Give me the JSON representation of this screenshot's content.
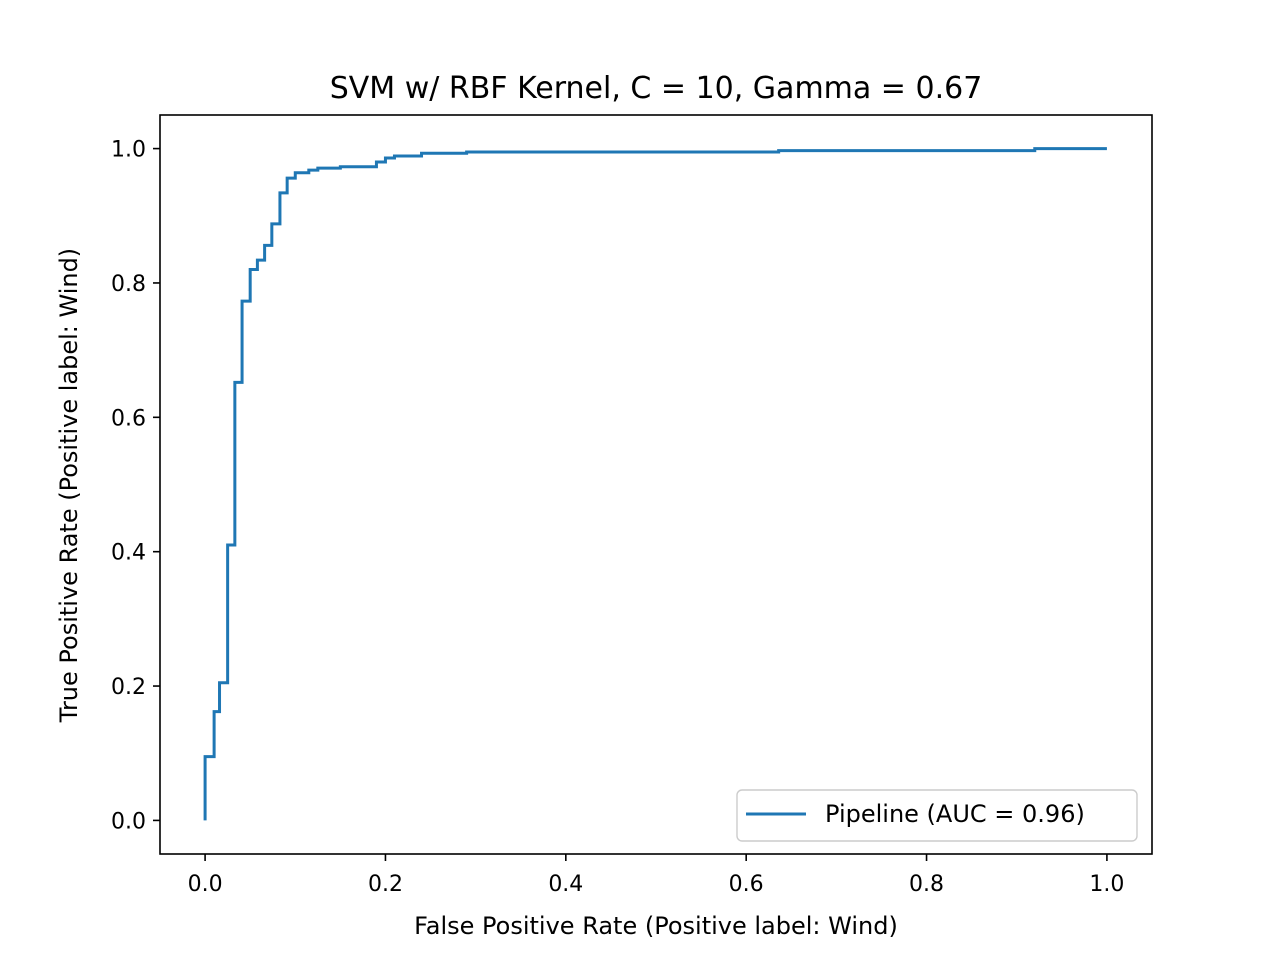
{
  "chart_data": {
    "type": "line",
    "title": "SVM w/ RBF Kernel, C = 10, Gamma = 0.67",
    "xlabel": "False Positive Rate (Positive label: Wind)",
    "ylabel": "True Positive Rate (Positive label: Wind)",
    "xlim": [
      -0.05,
      1.05
    ],
    "ylim": [
      -0.05,
      1.05
    ],
    "xticks": [
      0.0,
      0.2,
      0.4,
      0.6,
      0.8,
      1.0
    ],
    "xtick_labels": [
      "0.0",
      "0.2",
      "0.4",
      "0.6",
      "0.8",
      "1.0"
    ],
    "yticks": [
      0.0,
      0.2,
      0.4,
      0.6,
      0.8,
      1.0
    ],
    "ytick_labels": [
      "0.0",
      "0.2",
      "0.4",
      "0.6",
      "0.8",
      "1.0"
    ],
    "grid": false,
    "legend_position": "lower-right",
    "series": [
      {
        "name": "Pipeline (AUC = 0.96)",
        "color": "#1f77b4",
        "drawstyle": "steps",
        "x": [
          0.0,
          0.0,
          0.01,
          0.01,
          0.016,
          0.016,
          0.025,
          0.025,
          0.033,
          0.033,
          0.041,
          0.041,
          0.05,
          0.05,
          0.058,
          0.058,
          0.066,
          0.066,
          0.074,
          0.074,
          0.083,
          0.083,
          0.091,
          0.091,
          0.1,
          0.1,
          0.115,
          0.115,
          0.125,
          0.125,
          0.15,
          0.15,
          0.19,
          0.19,
          0.2,
          0.2,
          0.21,
          0.21,
          0.24,
          0.24,
          0.29,
          0.29,
          0.636,
          0.636,
          0.92,
          0.92,
          1.0
        ],
        "y": [
          0.0,
          0.095,
          0.095,
          0.162,
          0.162,
          0.205,
          0.205,
          0.41,
          0.41,
          0.652,
          0.652,
          0.773,
          0.773,
          0.82,
          0.82,
          0.834,
          0.834,
          0.856,
          0.856,
          0.888,
          0.888,
          0.934,
          0.934,
          0.956,
          0.956,
          0.964,
          0.964,
          0.968,
          0.968,
          0.971,
          0.971,
          0.973,
          0.973,
          0.98,
          0.98,
          0.986,
          0.986,
          0.989,
          0.989,
          0.993,
          0.993,
          0.995,
          0.995,
          0.997,
          0.997,
          1.0,
          1.0
        ]
      }
    ]
  }
}
